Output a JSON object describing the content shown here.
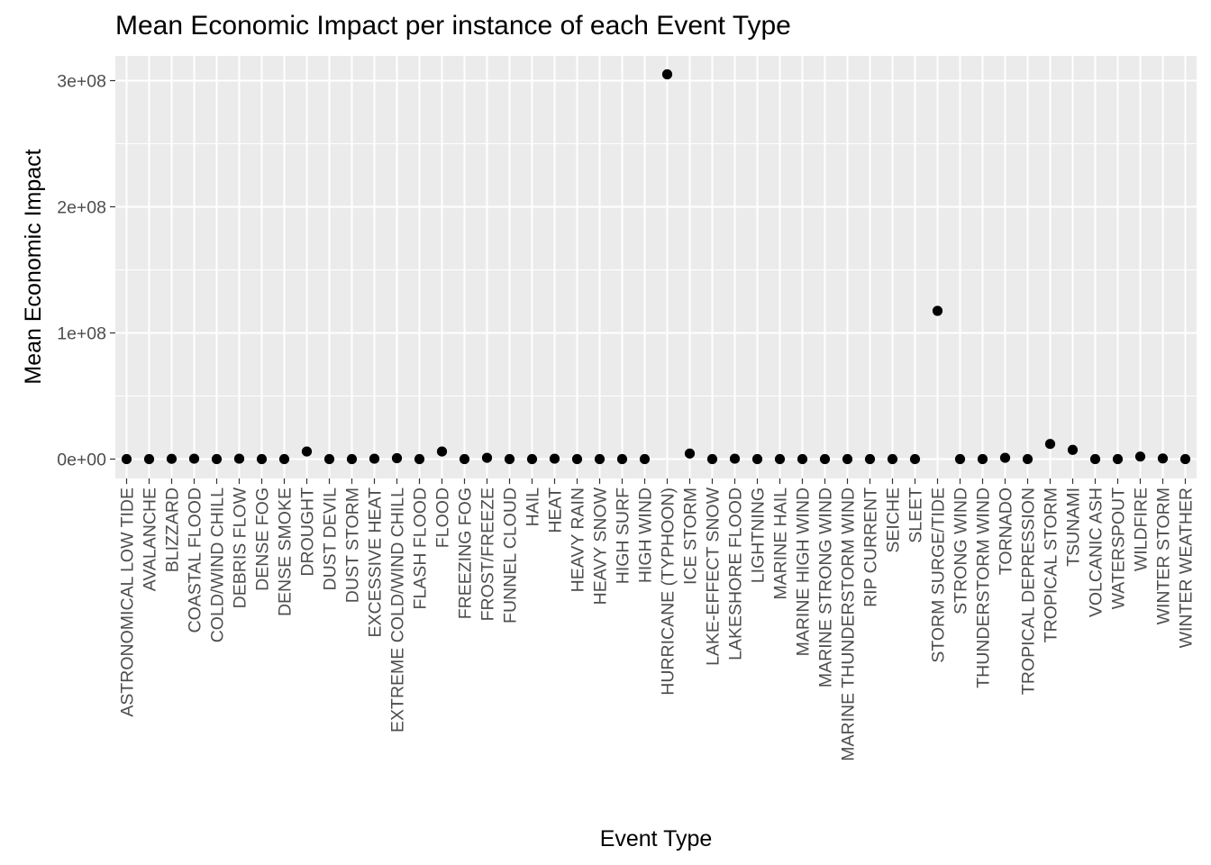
{
  "chart_data": {
    "type": "scatter",
    "title": "Mean Economic Impact per instance of each Event Type",
    "xlabel": "Event Type",
    "ylabel": "Mean Economic Impact",
    "ylim": [
      -17000000,
      324000000
    ],
    "y_ticks": [
      0,
      100000000,
      200000000,
      300000000
    ],
    "y_tick_labels": [
      "0e+00",
      "1e+08",
      "2e+08",
      "3e+08"
    ],
    "grid": true,
    "point_color": "#000000",
    "panel_color": "#ebebeb",
    "categories": [
      "ASTRONOMICAL LOW TIDE",
      "AVALANCHE",
      "BLIZZARD",
      "COASTAL FLOOD",
      "COLD/WIND CHILL",
      "DEBRIS FLOW",
      "DENSE FOG",
      "DENSE SMOKE",
      "DROUGHT",
      "DUST DEVIL",
      "DUST STORM",
      "EXCESSIVE HEAT",
      "EXTREME COLD/WIND CHILL",
      "FLASH FLOOD",
      "FLOOD",
      "FREEZING FOG",
      "FROST/FREEZE",
      "FUNNEL CLOUD",
      "HAIL",
      "HEAT",
      "HEAVY RAIN",
      "HEAVY SNOW",
      "HIGH SURF",
      "HIGH WIND",
      "HURRICANE (TYPHOON)",
      "ICE STORM",
      "LAKE-EFFECT SNOW",
      "LAKESHORE FLOOD",
      "LIGHTNING",
      "MARINE HAIL",
      "MARINE HIGH WIND",
      "MARINE STRONG WIND",
      "MARINE THUNDERSTORM WIND",
      "RIP CURRENT",
      "SEICHE",
      "SLEET",
      "STORM SURGE/TIDE",
      "STRONG WIND",
      "THUNDERSTORM WIND",
      "TORNADO",
      "TROPICAL DEPRESSION",
      "TROPICAL STORM",
      "TSUNAMI",
      "VOLCANIC ASH",
      "WATERSPOUT",
      "WILDFIRE",
      "WINTER STORM",
      "WINTER WEATHER"
    ],
    "values": [
      0,
      0,
      200000,
      300000,
      0,
      300000,
      0,
      0,
      6000000,
      0,
      0,
      300000,
      700000,
      0,
      6000000,
      0,
      1000000,
      0,
      0,
      300000,
      0,
      0,
      0,
      0,
      305000000,
      4400000,
      0,
      300000,
      0,
      0,
      0,
      0,
      0,
      0,
      0,
      0,
      117500000,
      0,
      0,
      1000000,
      0,
      12000000,
      7300000,
      0,
      0,
      2000000,
      500000,
      0
    ]
  }
}
